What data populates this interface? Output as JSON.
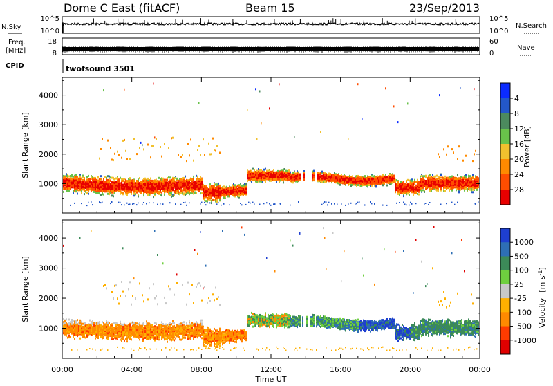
{
  "header": {
    "title": "Dome C East (fitACF)",
    "beam": "Beam 15",
    "date": "23/Sep/2013"
  },
  "strip_nsky": {
    "label": "N.Sky",
    "right_label": "N.Search",
    "ticks_left": [
      "10^5",
      "10^0"
    ],
    "ticks_right": [
      "10^5",
      "10^0"
    ]
  },
  "strip_freq": {
    "label_line1": "Freq.",
    "label_line2": "[MHz]",
    "right_label": "Nave",
    "ticks_left": [
      "18",
      "8"
    ],
    "ticks_right": [
      "60",
      "0"
    ]
  },
  "strip_cpid": {
    "label": "CPID",
    "program": "twofsound 3501"
  },
  "chart_data": [
    {
      "type": "heatmap",
      "name": "power",
      "ylabel": "Slant Range [km]",
      "ylim": [
        0,
        4600
      ],
      "yticks": [
        1000,
        2000,
        3000,
        4000
      ],
      "xlim": [
        0,
        24
      ],
      "colorbar": {
        "label": "Power [dB]",
        "ticks": [
          "4",
          "8",
          "12",
          "16",
          "20",
          "24",
          "28"
        ],
        "colors": [
          "#0b2bff",
          "#2357c9",
          "#4c8a5e",
          "#69c24a",
          "#f1c12e",
          "#ff8a00",
          "#ff4d00",
          "#e80000"
        ]
      }
    },
    {
      "type": "heatmap",
      "name": "velocity",
      "ylabel": "Slant Range [km]",
      "ylim": [
        0,
        4600
      ],
      "yticks": [
        1000,
        2000,
        3000,
        4000
      ],
      "xlim": [
        0,
        24
      ],
      "xlabel": "Time UT",
      "xtick_labels": [
        "00:00",
        "04:00",
        "08:00",
        "12:00",
        "16:00",
        "20:00",
        "00:00"
      ],
      "colorbar": {
        "label_main": "Velocity",
        "label_unit": "[m s",
        "label_exp": "-1",
        "label_close": "]",
        "ticks": [
          "1000",
          "500",
          "100",
          "25",
          "-25",
          "-100",
          "-500",
          "-1000"
        ],
        "colors": [
          "#1e3fd0",
          "#2e6fb5",
          "#3c8a58",
          "#6fcf3f",
          "#c8c8c8",
          "#ffb000",
          "#ff8a00",
          "#ff3b00",
          "#e00000"
        ]
      }
    }
  ]
}
